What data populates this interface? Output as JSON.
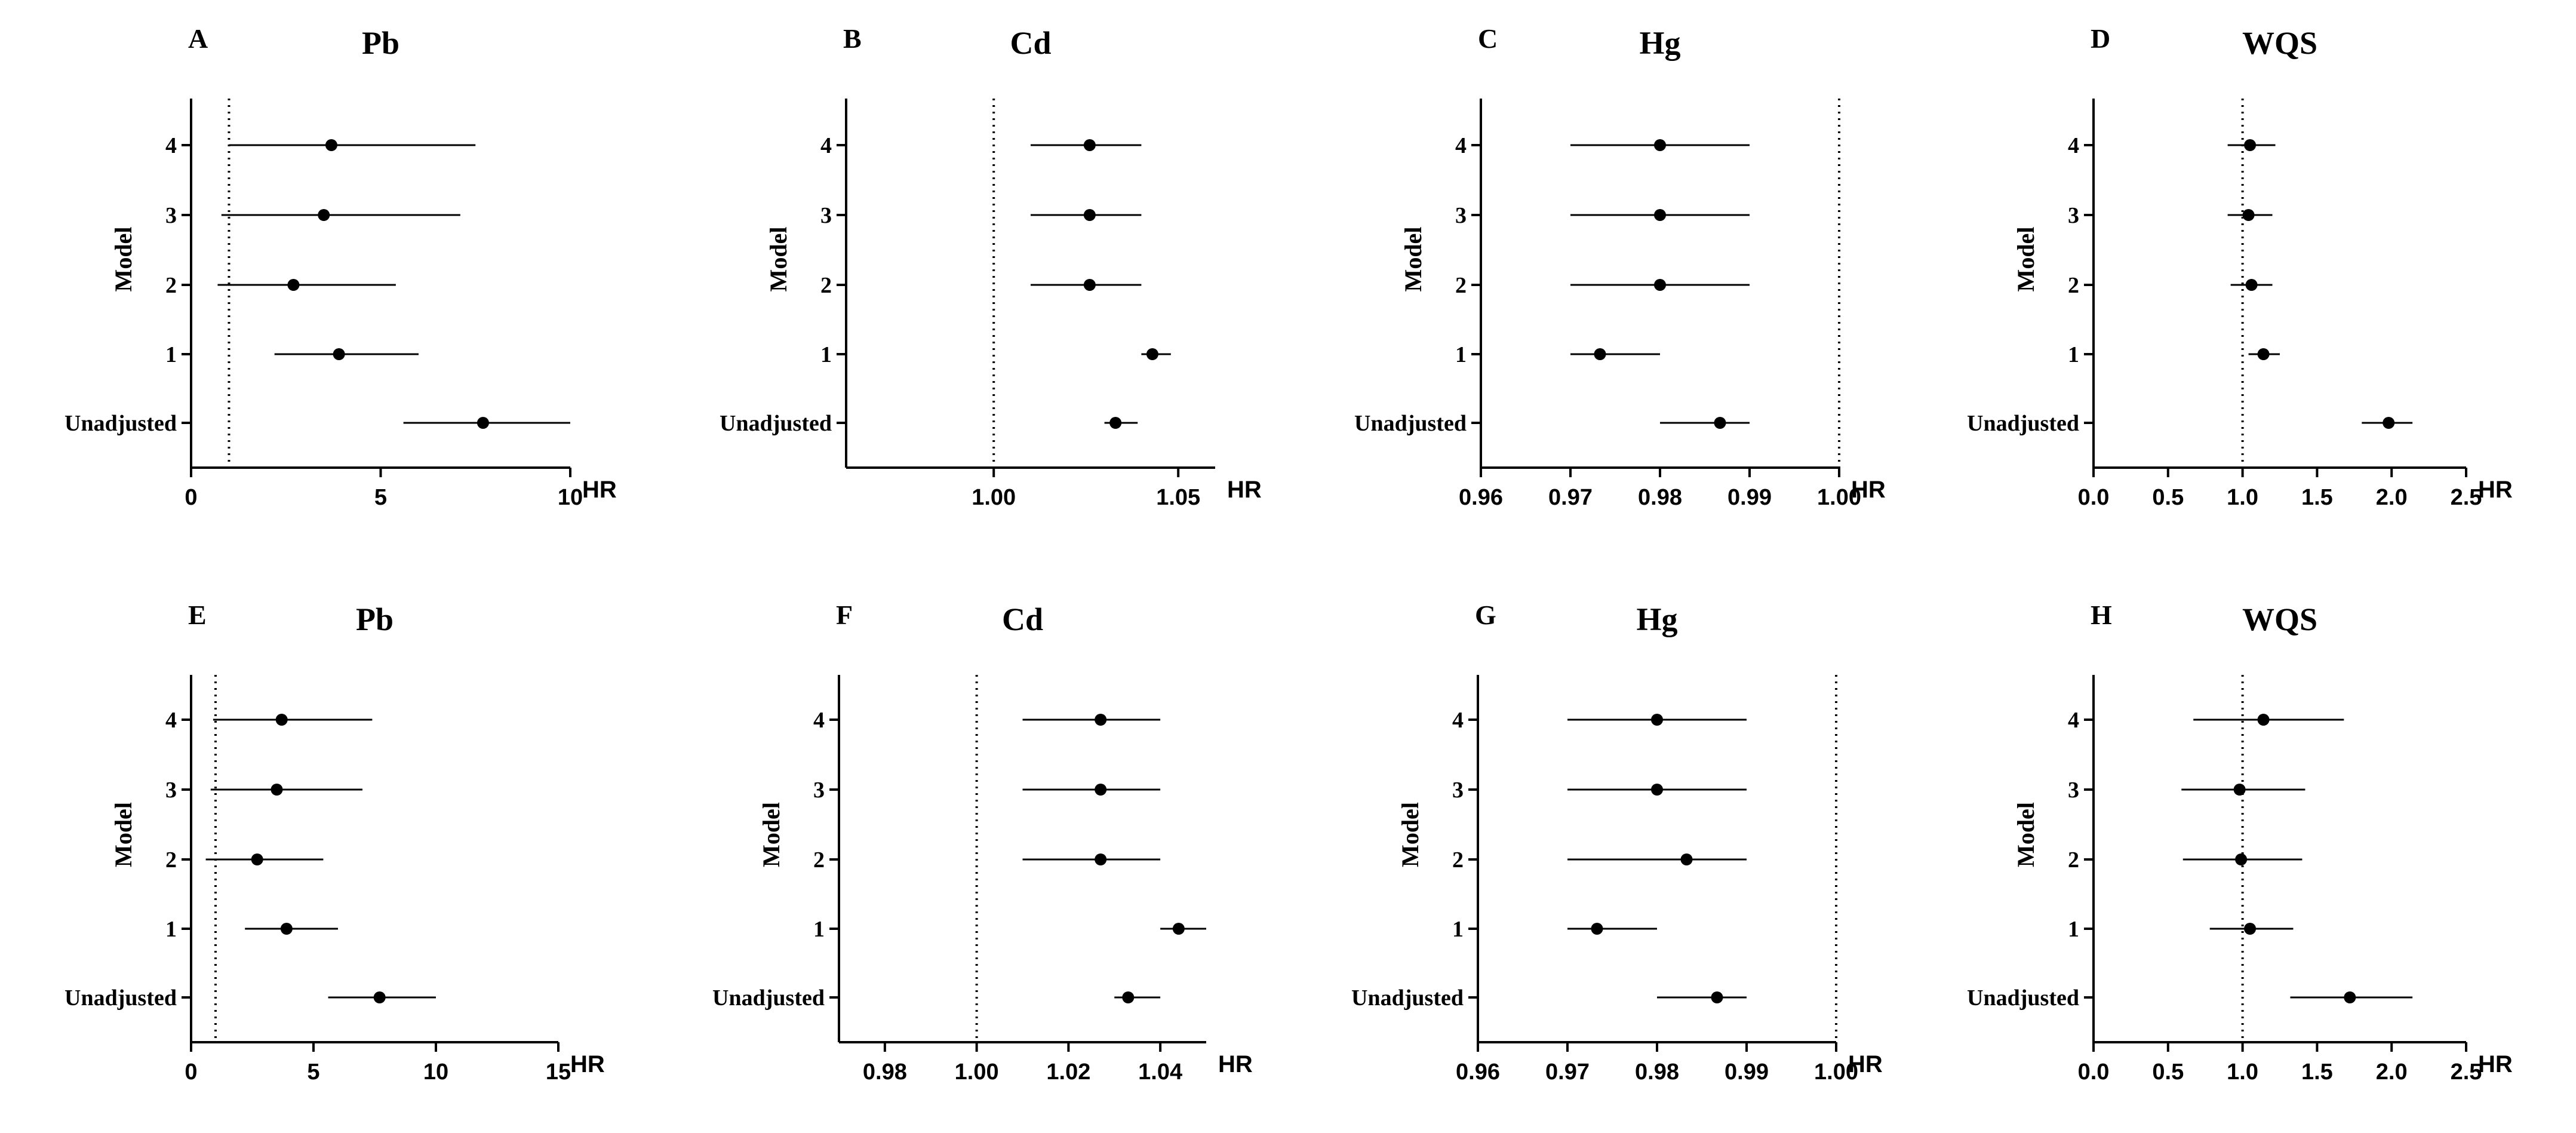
{
  "chart_data": [
    {
      "panel": "A",
      "title": "Pb",
      "type": "forest",
      "xlabel": "HR",
      "ylabel": "Model",
      "xlim": [
        0,
        10
      ],
      "xticks": [
        0,
        5,
        10
      ],
      "xtick_labels": [
        "0",
        "5",
        "10"
      ],
      "ref_value": 1,
      "categories": [
        "4",
        "3",
        "2",
        "1",
        "Unadjusted"
      ],
      "points": [
        {
          "label": "4",
          "hr": 3.7,
          "lo": 1.0,
          "hi": 7.5
        },
        {
          "label": "3",
          "hr": 3.5,
          "lo": 0.8,
          "hi": 7.1
        },
        {
          "label": "2",
          "hr": 2.7,
          "lo": 0.7,
          "hi": 5.4
        },
        {
          "label": "1",
          "hr": 3.9,
          "lo": 2.2,
          "hi": 6.0
        },
        {
          "label": "Unadjusted",
          "hr": 7.7,
          "lo": 5.6,
          "hi": 10.0
        }
      ]
    },
    {
      "panel": "B",
      "title": "Cd",
      "type": "forest",
      "xlabel": "HR",
      "ylabel": "Model",
      "xlim": [
        0.96,
        1.06
      ],
      "xticks": [
        1.0,
        1.05
      ],
      "xtick_labels": [
        "1.00",
        "1.05"
      ],
      "ref_value": 1.0,
      "categories": [
        "4",
        "3",
        "2",
        "1",
        "Unadjusted"
      ],
      "points": [
        {
          "label": "4",
          "hr": 1.026,
          "lo": 1.01,
          "hi": 1.04
        },
        {
          "label": "3",
          "hr": 1.026,
          "lo": 1.01,
          "hi": 1.04
        },
        {
          "label": "2",
          "hr": 1.026,
          "lo": 1.01,
          "hi": 1.04
        },
        {
          "label": "1",
          "hr": 1.043,
          "lo": 1.04,
          "hi": 1.048
        },
        {
          "label": "Unadjusted",
          "hr": 1.033,
          "lo": 1.03,
          "hi": 1.039
        }
      ]
    },
    {
      "panel": "C",
      "title": "Hg",
      "type": "forest",
      "xlabel": "HR",
      "ylabel": "Model",
      "xlim": [
        0.96,
        1.0
      ],
      "xticks": [
        0.96,
        0.97,
        0.98,
        0.99,
        1.0
      ],
      "xtick_labels": [
        "0.96",
        "0.97",
        "0.98",
        "0.99",
        "1.00"
      ],
      "ref_value": 1.0,
      "categories": [
        "4",
        "3",
        "2",
        "1",
        "Unadjusted"
      ],
      "points": [
        {
          "label": "4",
          "hr": 0.98,
          "lo": 0.97,
          "hi": 0.99
        },
        {
          "label": "3",
          "hr": 0.98,
          "lo": 0.97,
          "hi": 0.99
        },
        {
          "label": "2",
          "hr": 0.98,
          "lo": 0.97,
          "hi": 0.99
        },
        {
          "label": "1",
          "hr": 0.9733,
          "lo": 0.97,
          "hi": 0.98
        },
        {
          "label": "Unadjusted",
          "hr": 0.9867,
          "lo": 0.98,
          "hi": 0.99
        }
      ]
    },
    {
      "panel": "D",
      "title": "WQS",
      "type": "forest",
      "xlabel": "HR",
      "ylabel": "Model",
      "xlim": [
        0,
        2.5
      ],
      "xticks": [
        0,
        0.5,
        1.0,
        1.5,
        2.0,
        2.5
      ],
      "xtick_labels": [
        "0.0",
        "0.5",
        "1.0",
        "1.5",
        "2.0",
        "2.5"
      ],
      "ref_value": 1.0,
      "categories": [
        "4",
        "3",
        "2",
        "1",
        "Unadjusted"
      ],
      "points": [
        {
          "label": "4",
          "hr": 1.05,
          "lo": 0.9,
          "hi": 1.22
        },
        {
          "label": "3",
          "hr": 1.04,
          "lo": 0.9,
          "hi": 1.2
        },
        {
          "label": "2",
          "hr": 1.06,
          "lo": 0.92,
          "hi": 1.2
        },
        {
          "label": "1",
          "hr": 1.14,
          "lo": 1.04,
          "hi": 1.25
        },
        {
          "label": "Unadjusted",
          "hr": 1.98,
          "lo": 1.8,
          "hi": 2.14
        }
      ]
    },
    {
      "panel": "E",
      "title": "Pb",
      "type": "forest",
      "xlabel": "HR",
      "ylabel": "Model",
      "xlim": [
        0,
        15
      ],
      "xticks": [
        0,
        5,
        10,
        15
      ],
      "xtick_labels": [
        "0",
        "5",
        "10",
        "15"
      ],
      "ref_value": 1,
      "categories": [
        "4",
        "3",
        "2",
        "1",
        "Unadjusted"
      ],
      "points": [
        {
          "label": "4",
          "hr": 3.7,
          "lo": 0.9,
          "hi": 7.4
        },
        {
          "label": "3",
          "hr": 3.5,
          "lo": 0.8,
          "hi": 7.0
        },
        {
          "label": "2",
          "hr": 2.7,
          "lo": 0.6,
          "hi": 5.4
        },
        {
          "label": "1",
          "hr": 3.9,
          "lo": 2.2,
          "hi": 6.0
        },
        {
          "label": "Unadjusted",
          "hr": 7.7,
          "lo": 5.6,
          "hi": 10.0
        }
      ]
    },
    {
      "panel": "F",
      "title": "Cd",
      "type": "forest",
      "xlabel": "HR",
      "ylabel": "Model",
      "xlim": [
        0.97,
        1.05
      ],
      "xticks": [
        0.98,
        1.0,
        1.02,
        1.04
      ],
      "xtick_labels": [
        "0.98",
        "1.00",
        "1.02",
        "1.04"
      ],
      "ref_value": 1.0,
      "categories": [
        "4",
        "3",
        "2",
        "1",
        "Unadjusted"
      ],
      "points": [
        {
          "label": "4",
          "hr": 1.027,
          "lo": 1.01,
          "hi": 1.04
        },
        {
          "label": "3",
          "hr": 1.027,
          "lo": 1.01,
          "hi": 1.04
        },
        {
          "label": "2",
          "hr": 1.027,
          "lo": 1.01,
          "hi": 1.04
        },
        {
          "label": "1",
          "hr": 1.044,
          "lo": 1.04,
          "hi": 1.05
        },
        {
          "label": "Unadjusted",
          "hr": 1.033,
          "lo": 1.03,
          "hi": 1.04
        }
      ]
    },
    {
      "panel": "G",
      "title": "Hg",
      "type": "forest",
      "xlabel": "HR",
      "ylabel": "Model",
      "xlim": [
        0.96,
        1.0
      ],
      "xticks": [
        0.96,
        0.97,
        0.98,
        0.99,
        1.0
      ],
      "xtick_labels": [
        "0.96",
        "0.97",
        "0.98",
        "0.99",
        "1.00"
      ],
      "ref_value": 1.0,
      "categories": [
        "4",
        "3",
        "2",
        "1",
        "Unadjusted"
      ],
      "points": [
        {
          "label": "4",
          "hr": 0.98,
          "lo": 0.97,
          "hi": 0.99
        },
        {
          "label": "3",
          "hr": 0.98,
          "lo": 0.97,
          "hi": 0.99
        },
        {
          "label": "2",
          "hr": 0.9833,
          "lo": 0.97,
          "hi": 0.99
        },
        {
          "label": "1",
          "hr": 0.9733,
          "lo": 0.97,
          "hi": 0.98
        },
        {
          "label": "Unadjusted",
          "hr": 0.9867,
          "lo": 0.98,
          "hi": 0.99
        }
      ]
    },
    {
      "panel": "H",
      "title": "WQS",
      "type": "forest",
      "xlabel": "HR",
      "ylabel": "Model",
      "xlim": [
        0,
        2.5
      ],
      "xticks": [
        0,
        0.5,
        1.0,
        1.5,
        2.0,
        2.5
      ],
      "xtick_labels": [
        "0.0",
        "0.5",
        "1.0",
        "1.5",
        "2.0",
        "2.5"
      ],
      "ref_value": 1.0,
      "categories": [
        "4",
        "3",
        "2",
        "1",
        "Unadjusted"
      ],
      "points": [
        {
          "label": "4",
          "hr": 1.14,
          "lo": 0.67,
          "hi": 1.68
        },
        {
          "label": "3",
          "hr": 0.98,
          "lo": 0.59,
          "hi": 1.42
        },
        {
          "label": "2",
          "hr": 0.99,
          "lo": 0.6,
          "hi": 1.4
        },
        {
          "label": "1",
          "hr": 1.05,
          "lo": 0.78,
          "hi": 1.34
        },
        {
          "label": "Unadjusted",
          "hr": 1.72,
          "lo": 1.32,
          "hi": 2.14
        }
      ]
    }
  ]
}
